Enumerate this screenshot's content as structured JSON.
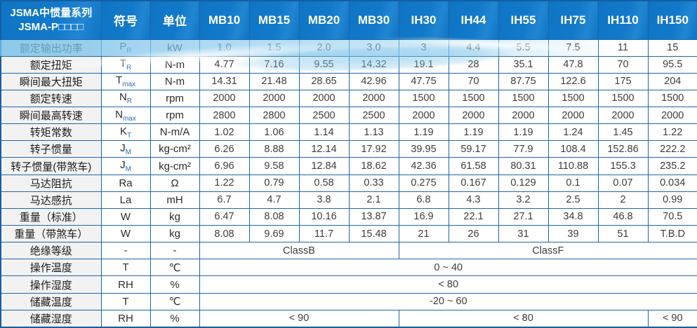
{
  "title": {
    "line1": "JSMA中惯量系列",
    "line2": "JSMA-P□□□□"
  },
  "header": {
    "symbol_label": "符号",
    "unit_label": "单位",
    "models": [
      "MB10",
      "MB15",
      "MB20",
      "MB30",
      "IH30",
      "IH44",
      "IH55",
      "IH75",
      "IH110",
      "IH150"
    ]
  },
  "rows": [
    {
      "label": "额定输出功率",
      "sym": "P",
      "sub": "R",
      "unit": "kW",
      "values": [
        "1.0",
        "1.5",
        "2.0",
        "3.0",
        "3",
        "4.4",
        "5.5",
        "7.5",
        "11",
        "15"
      ]
    },
    {
      "label": "额定扭矩",
      "sym": "T",
      "sub": "R",
      "unit": "N-m",
      "values": [
        "4.77",
        "7.16",
        "9.55",
        "14.32",
        "19.1",
        "28",
        "35.1",
        "47.8",
        "70",
        "95.5"
      ]
    },
    {
      "label": "瞬间最大扭矩",
      "sym": "T",
      "sub": "max",
      "unit": "N-m",
      "values": [
        "14.31",
        "21.48",
        "28.65",
        "42.96",
        "47.75",
        "70",
        "87.75",
        "122.6",
        "175",
        "204"
      ]
    },
    {
      "label": "额定转速",
      "sym": "N",
      "sub": "R",
      "unit": "rpm",
      "values": [
        "2000",
        "2000",
        "2000",
        "2000",
        "1500",
        "1500",
        "1500",
        "1500",
        "1500",
        "1500"
      ]
    },
    {
      "label": "瞬间最高转速",
      "sym": "N",
      "sub": "max",
      "unit": "rpm",
      "values": [
        "2800",
        "2800",
        "2500",
        "2500",
        "2000",
        "2000",
        "2000",
        "2000",
        "2000",
        "2000"
      ]
    },
    {
      "label": "转矩常数",
      "sym": "K",
      "sub": "T",
      "unit": "N-m/A",
      "values": [
        "1.02",
        "1.06",
        "1.14",
        "1.13",
        "1.19",
        "1.19",
        "1.19",
        "1.24",
        "1.45",
        "1.22"
      ]
    },
    {
      "label": "转子惯量",
      "sym": "J",
      "sub": "M",
      "unit": "kg-cm²",
      "values": [
        "6.26",
        "8.88",
        "12.14",
        "17.92",
        "39.95",
        "59.17",
        "77.9",
        "108.4",
        "152.86",
        "222.2"
      ]
    },
    {
      "label": "转子惯量(带煞车)",
      "sym": "J",
      "sub": "M",
      "unit": "kg-cm²",
      "values": [
        "6.96",
        "9.58",
        "12.84",
        "18.62",
        "42.36",
        "61.58",
        "80.31",
        "110.88",
        "155.3",
        "235.2"
      ]
    },
    {
      "label": "马达阻抗",
      "sym": "Ra",
      "sub": "",
      "unit": "Ω",
      "values": [
        "1.22",
        "0.79",
        "0.58",
        "0.33",
        "0.275",
        "0.167",
        "0.129",
        "0.1",
        "0.07",
        "0.034"
      ]
    },
    {
      "label": "马达感抗",
      "sym": "La",
      "sub": "",
      "unit": "mH",
      "values": [
        "6.7",
        "4.7",
        "3.8",
        "2.1",
        "6.8",
        "4.3",
        "3.2",
        "2.5",
        "2",
        "0.99"
      ]
    },
    {
      "label": "重量（标准）",
      "sym": "W",
      "sub": "",
      "unit": "kg",
      "values": [
        "6.47",
        "8.08",
        "10.16",
        "13.87",
        "16.9",
        "22.1",
        "27.1",
        "34.8",
        "46.8",
        "70.5"
      ]
    },
    {
      "label": "重量（带煞车）",
      "sym": "W",
      "sub": "",
      "unit": "kg",
      "values": [
        "8.08",
        "9.69",
        "11.7",
        "15.48",
        "21",
        "26",
        "31",
        "39",
        "51",
        "T.B.D"
      ]
    },
    {
      "label": "绝缘等级",
      "sym": "-",
      "sub": "",
      "unit": "-",
      "spans": [
        {
          "text": "ClassB",
          "cols": 4
        },
        {
          "text": "ClassF",
          "cols": 6
        }
      ]
    },
    {
      "label": "操作温度",
      "sym": "T",
      "sub": "",
      "unit": "℃",
      "spans": [
        {
          "text": "0 ~ 40",
          "cols": 10
        }
      ]
    },
    {
      "label": "操作湿度",
      "sym": "RH",
      "sub": "",
      "unit": "%",
      "spans": [
        {
          "text": "< 80",
          "cols": 10
        }
      ]
    },
    {
      "label": "储藏温度",
      "sym": "T",
      "sub": "",
      "unit": "℃",
      "spans": [
        {
          "text": "-20 ~ 60",
          "cols": 10
        }
      ]
    },
    {
      "label": "储藏湿度",
      "sym": "RH",
      "sub": "",
      "unit": "%",
      "spans": [
        {
          "text": "< 90",
          "cols": 4
        },
        {
          "text": "< 80",
          "cols": 5
        },
        {
          "text": "< 90",
          "cols": 1
        }
      ]
    }
  ],
  "colors": {
    "header_bg": "#1278c8",
    "grid_border": "#1b67ad",
    "label_bg": "#f2f2f2",
    "swoosh_light_blue": "#7dc0e8"
  }
}
